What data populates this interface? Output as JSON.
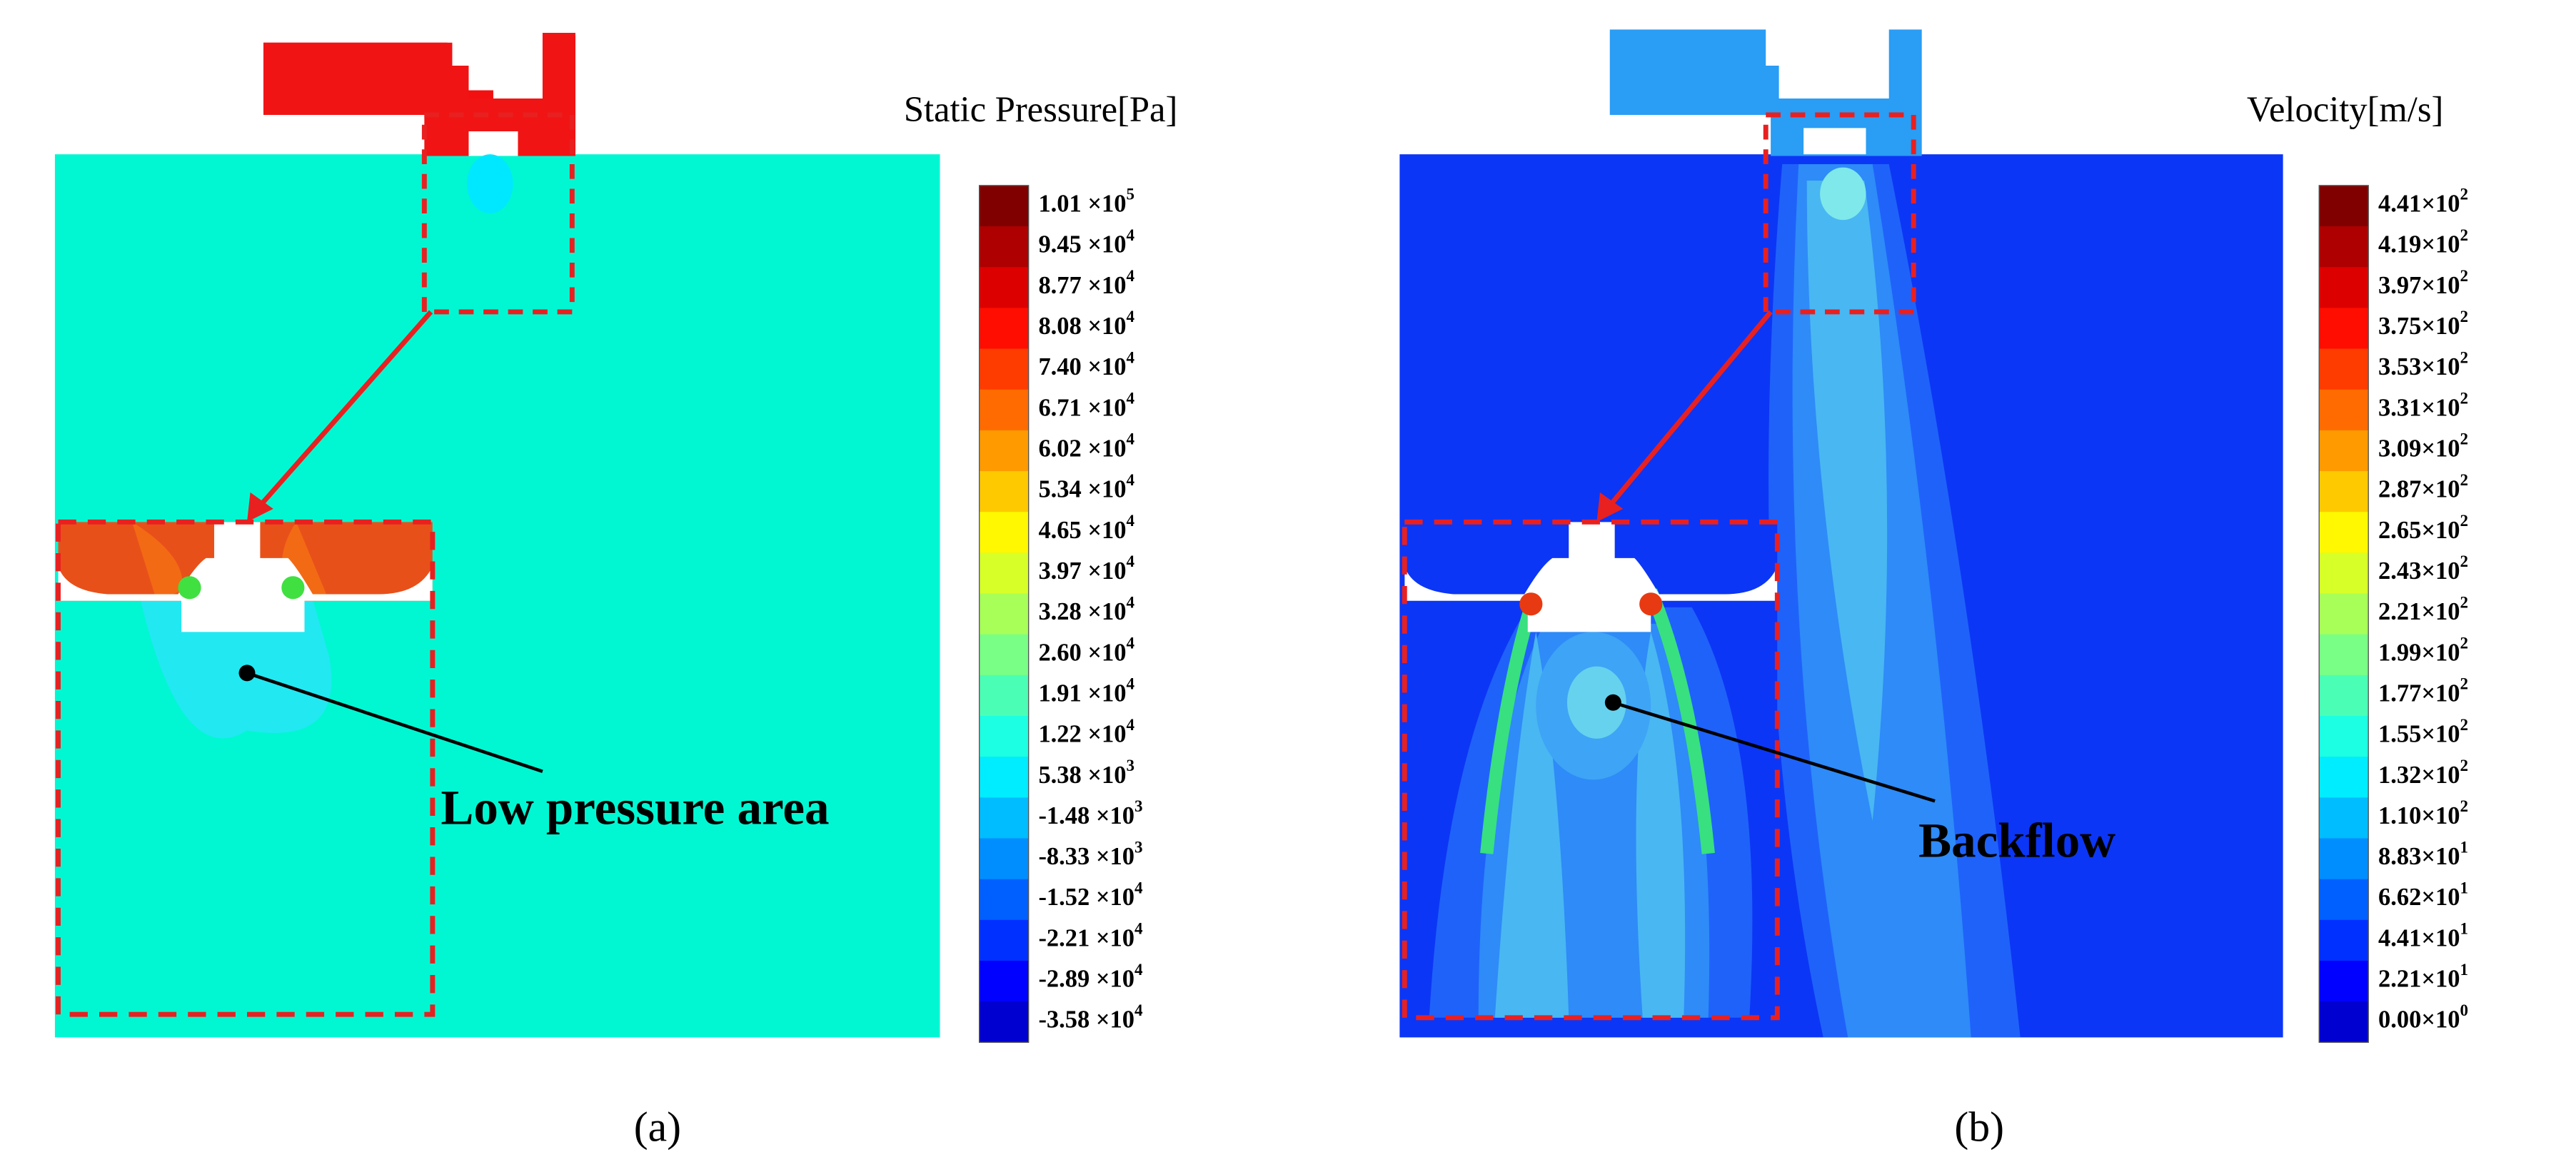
{
  "panels": [
    {
      "label": "(a)",
      "legend_title": "Static Pressure[Pa]",
      "annotation": "Low pressure area",
      "colorbar": [
        {
          "base": "1.01 ×10",
          "exp": "5"
        },
        {
          "base": "9.45 ×10",
          "exp": "4"
        },
        {
          "base": "8.77 ×10",
          "exp": "4"
        },
        {
          "base": "8.08 ×10",
          "exp": "4"
        },
        {
          "base": "7.40 ×10",
          "exp": "4"
        },
        {
          "base": "6.71 ×10",
          "exp": "4"
        },
        {
          "base": "6.02 ×10",
          "exp": "4"
        },
        {
          "base": "5.34 ×10",
          "exp": "4"
        },
        {
          "base": "4.65 ×10",
          "exp": "4"
        },
        {
          "base": "3.97 ×10",
          "exp": "4"
        },
        {
          "base": "3.28 ×10",
          "exp": "4"
        },
        {
          "base": "2.60 ×10",
          "exp": "4"
        },
        {
          "base": "1.91 ×10",
          "exp": "4"
        },
        {
          "base": "1.22 ×10",
          "exp": "4"
        },
        {
          "base": "5.38 ×10",
          "exp": "3"
        },
        {
          "base": "-1.48 ×10",
          "exp": "3"
        },
        {
          "base": "-8.33 ×10",
          "exp": "3"
        },
        {
          "base": "-1.52 ×10",
          "exp": "4"
        },
        {
          "base": "-2.21 ×10",
          "exp": "4"
        },
        {
          "base": "-2.89 ×10",
          "exp": "4"
        },
        {
          "base": "-3.58 ×10",
          "exp": "4"
        }
      ]
    },
    {
      "label": "(b)",
      "legend_title": "Velocity[m/s]",
      "annotation": "Backflow",
      "colorbar": [
        {
          "base": "4.41×10",
          "exp": "2"
        },
        {
          "base": "4.19×10",
          "exp": "2"
        },
        {
          "base": "3.97×10",
          "exp": "2"
        },
        {
          "base": "3.75×10",
          "exp": "2"
        },
        {
          "base": "3.53×10",
          "exp": "2"
        },
        {
          "base": "3.31×10",
          "exp": "2"
        },
        {
          "base": "3.09×10",
          "exp": "2"
        },
        {
          "base": "2.87×10",
          "exp": "2"
        },
        {
          "base": "2.65×10",
          "exp": "2"
        },
        {
          "base": "2.43×10",
          "exp": "2"
        },
        {
          "base": "2.21×10",
          "exp": "2"
        },
        {
          "base": "1.99×10",
          "exp": "2"
        },
        {
          "base": "1.77×10",
          "exp": "2"
        },
        {
          "base": "1.55×10",
          "exp": "2"
        },
        {
          "base": "1.32×10",
          "exp": "2"
        },
        {
          "base": "1.10×10",
          "exp": "2"
        },
        {
          "base": "8.83×10",
          "exp": "1"
        },
        {
          "base": "6.62×10",
          "exp": "1"
        },
        {
          "base": "4.41×10",
          "exp": "1"
        },
        {
          "base": "2.21×10",
          "exp": "1"
        },
        {
          "base": "0.00×10",
          "exp": "0"
        }
      ]
    }
  ]
}
